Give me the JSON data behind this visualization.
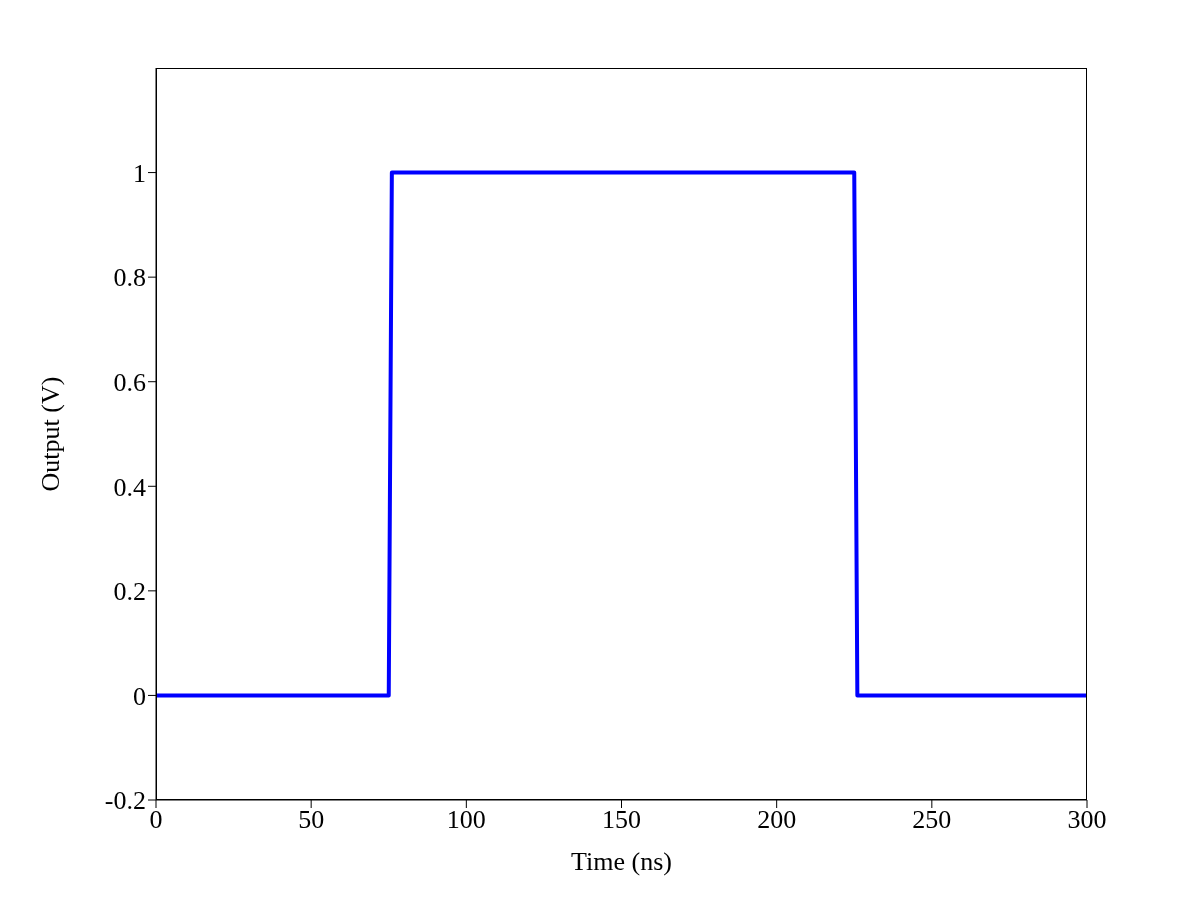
{
  "chart_data": {
    "type": "line",
    "xlabel": "Time (ns)",
    "ylabel": "Output (V)",
    "x": [
      0,
      75,
      76,
      225,
      226,
      300
    ],
    "values": [
      0,
      0,
      1,
      1,
      0,
      0
    ],
    "color": "#0000ff",
    "xlim": [
      0,
      300
    ],
    "ylim": [
      -0.2,
      1.2
    ],
    "xticks": [
      0,
      50,
      100,
      150,
      200,
      250,
      300
    ],
    "yticks": [
      -0.2,
      0,
      0.2,
      0.4,
      0.6,
      0.8,
      1
    ]
  }
}
